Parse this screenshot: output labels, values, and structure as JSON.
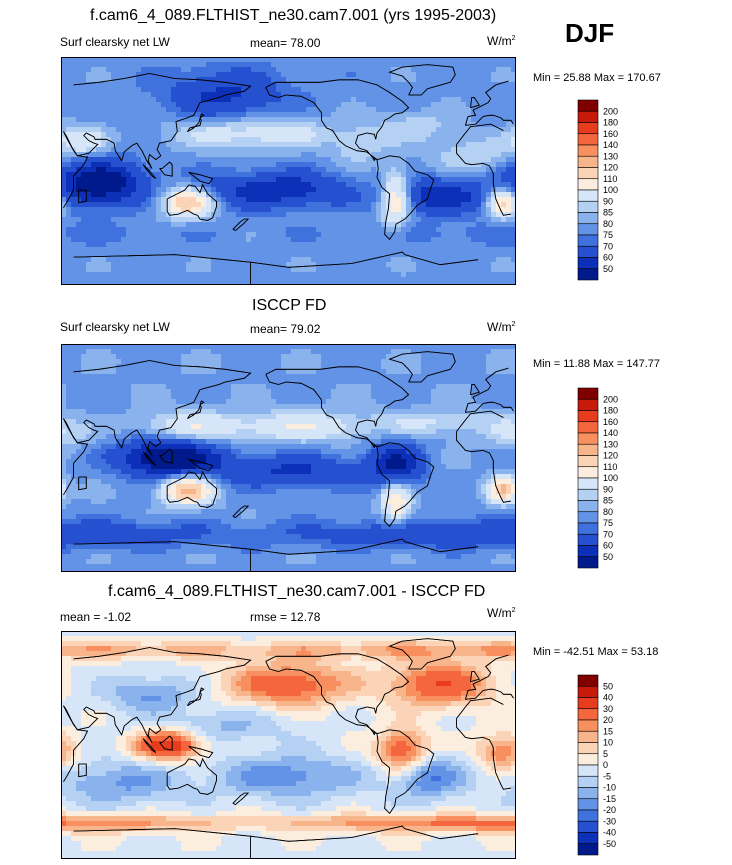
{
  "season": "DJF",
  "panels": [
    {
      "title": "f.cam6_4_089.FLTHIST_ne30.cam7.001 (yrs 1995-2003)",
      "left_label": "Surf clearsky net LW",
      "center_label": "mean=  78.00",
      "units": "W/m",
      "units_exp": "2",
      "minmax": "Min =  25.88 Max = 170.67",
      "colorbar_levels": [
        "200",
        "180",
        "160",
        "140",
        "130",
        "120",
        "110",
        "100",
        "90",
        "85",
        "80",
        "75",
        "70",
        "60",
        "50"
      ],
      "colorbar_colors": [
        "#800000",
        "#c71a0a",
        "#e83c1e",
        "#f4663e",
        "#f7905e",
        "#f8b48a",
        "#fbd3b6",
        "#fbeede",
        "#d6e6f8",
        "#b4d1f4",
        "#8ab3ed",
        "#6393e6",
        "#3f72dc",
        "#2550d0",
        "#0c30b8",
        "#001a8c"
      ]
    },
    {
      "title": "ISCCP FD",
      "left_label": "Surf clearsky net LW",
      "center_label": "mean=  79.02",
      "units": "W/m",
      "units_exp": "2",
      "minmax": "Min =  11.88 Max = 147.77",
      "colorbar_levels": [
        "200",
        "180",
        "160",
        "140",
        "130",
        "120",
        "110",
        "100",
        "90",
        "85",
        "80",
        "75",
        "70",
        "60",
        "50"
      ],
      "colorbar_colors": [
        "#800000",
        "#c71a0a",
        "#e83c1e",
        "#f4663e",
        "#f7905e",
        "#f8b48a",
        "#fbd3b6",
        "#fbeede",
        "#d6e6f8",
        "#b4d1f4",
        "#8ab3ed",
        "#6393e6",
        "#3f72dc",
        "#2550d0",
        "#0c30b8",
        "#001a8c"
      ]
    },
    {
      "title": "f.cam6_4_089.FLTHIST_ne30.cam7.001 - ISCCP FD",
      "left_label": "mean =  -1.02",
      "center_label": "rmse =  12.78",
      "units": "W/m",
      "units_exp": "2",
      "minmax": "Min = -42.51 Max =  53.18",
      "colorbar_levels": [
        "50",
        "40",
        "30",
        "20",
        "15",
        "10",
        "5",
        "0",
        "-5",
        "-10",
        "-15",
        "-20",
        "-30",
        "-40",
        "-50"
      ],
      "colorbar_colors": [
        "#800000",
        "#c71a0a",
        "#e83c1e",
        "#f4663e",
        "#f7905e",
        "#f8b48a",
        "#fbd3b6",
        "#fbeede",
        "#d6e6f8",
        "#b4d1f4",
        "#8ab3ed",
        "#6393e6",
        "#3f72dc",
        "#2550d0",
        "#0c30b8",
        "#001a8c"
      ]
    }
  ],
  "chart_data": [
    {
      "type": "heatmap",
      "title": "f.cam6_4_089.FLTHIST_ne30.cam7.001 (yrs 1995-2003)",
      "subtitle": "Surf clearsky net LW",
      "mean": 78.0,
      "min": 25.88,
      "max": 170.67,
      "units": "W/m2",
      "contour_levels": [
        50,
        60,
        70,
        75,
        80,
        85,
        90,
        100,
        110,
        120,
        130,
        140,
        160,
        180,
        200
      ],
      "fields": [
        {
          "lon": 60,
          "lat": -10,
          "sx": 24,
          "sy": 12,
          "v": -40
        },
        {
          "lon": -30,
          "lat": -20,
          "sx": 25,
          "sy": 10,
          "v": -25
        },
        {
          "lon": -160,
          "lat": -15,
          "sx": 40,
          "sy": 10,
          "v": -25
        },
        {
          "lon": 160,
          "lat": 60,
          "sx": 32,
          "sy": 14,
          "v": -20
        },
        {
          "lon": -5,
          "lat": 12,
          "sx": 22,
          "sy": 10,
          "v": 12
        },
        {
          "lon": 45,
          "lat": 24,
          "sx": 14,
          "sy": 8,
          "v": 20
        },
        {
          "lon": 150,
          "lat": 30,
          "sx": 30,
          "sy": 9,
          "v": 12
        },
        {
          "lon": -155,
          "lat": 30,
          "sx": 30,
          "sy": 9,
          "v": 14
        },
        {
          "lon": -50,
          "lat": 35,
          "sx": 24,
          "sy": 9,
          "v": 10
        },
        {
          "lon": 130,
          "lat": -25,
          "sx": 14,
          "sy": 8,
          "v": 42
        },
        {
          "lon": 20,
          "lat": -25,
          "sx": 8,
          "sy": 8,
          "v": 40
        },
        {
          "lon": -65,
          "lat": -22,
          "sx": 8,
          "sy": 16,
          "v": 32
        },
        {
          "lon": -95,
          "lat": 20,
          "sx": 14,
          "sy": 10,
          "v": 12
        },
        {
          "lon": 0,
          "lat": -50,
          "sx": 90,
          "sy": 6,
          "v": -5
        }
      ]
    },
    {
      "type": "heatmap",
      "title": "ISCCP FD",
      "subtitle": "Surf clearsky net LW",
      "mean": 79.02,
      "min": 11.88,
      "max": 147.77,
      "units": "W/m2",
      "contour_levels": [
        50,
        60,
        70,
        75,
        80,
        85,
        90,
        100,
        110,
        120,
        130,
        140,
        160,
        180,
        200
      ],
      "fields": [
        {
          "lon": 115,
          "lat": 0,
          "sx": 26,
          "sy": 10,
          "v": -45
        },
        {
          "lon": -65,
          "lat": -5,
          "sx": 14,
          "sy": 12,
          "v": -30
        },
        {
          "lon": -150,
          "lat": -10,
          "sx": 45,
          "sy": 9,
          "v": -20
        },
        {
          "lon": 0,
          "lat": -60,
          "sx": 120,
          "sy": 8,
          "v": -18
        },
        {
          "lon": 130,
          "lat": -25,
          "sx": 14,
          "sy": 8,
          "v": 45
        },
        {
          "lon": 20,
          "lat": -25,
          "sx": 8,
          "sy": 7,
          "v": 42
        },
        {
          "lon": -65,
          "lat": -35,
          "sx": 8,
          "sy": 12,
          "v": 30
        },
        {
          "lon": 30,
          "lat": 20,
          "sx": 16,
          "sy": 8,
          "v": 12
        },
        {
          "lon": 130,
          "lat": 25,
          "sx": 26,
          "sy": 8,
          "v": 18
        },
        {
          "lon": -140,
          "lat": 25,
          "sx": 40,
          "sy": 8,
          "v": 20
        },
        {
          "lon": -30,
          "lat": 28,
          "sx": 30,
          "sy": 7,
          "v": 12
        }
      ]
    },
    {
      "type": "heatmap",
      "title": "f.cam6_4_089.FLTHIST_ne30.cam7.001 - ISCCP FD",
      "mean": -1.02,
      "rmse": 12.78,
      "min": -42.51,
      "max": 53.18,
      "units": "W/m2",
      "contour_levels": [
        -50,
        -40,
        -30,
        -20,
        -15,
        -10,
        -5,
        0,
        5,
        10,
        15,
        20,
        30,
        40,
        50
      ],
      "fields": [
        {
          "lon": 115,
          "lat": 0,
          "sx": 18,
          "sy": 8,
          "v": 40
        },
        {
          "lon": -60,
          "lat": -5,
          "sx": 14,
          "sy": 12,
          "v": 30
        },
        {
          "lon": -150,
          "lat": 48,
          "sx": 34,
          "sy": 12,
          "v": 28
        },
        {
          "lon": -30,
          "lat": 48,
          "sx": 28,
          "sy": 12,
          "v": 30
        },
        {
          "lon": 0,
          "lat": -62,
          "sx": 130,
          "sy": 5,
          "v": 22
        },
        {
          "lon": 0,
          "lat": 75,
          "sx": 200,
          "sy": 5,
          "v": 15
        },
        {
          "lon": 20,
          "lat": -5,
          "sx": 14,
          "sy": 10,
          "v": 22
        },
        {
          "lon": -40,
          "lat": -25,
          "sx": 20,
          "sy": 12,
          "v": -20
        },
        {
          "lon": -150,
          "lat": -25,
          "sx": 40,
          "sy": 12,
          "v": -18
        },
        {
          "lon": 75,
          "lat": -30,
          "sx": 35,
          "sy": 12,
          "v": -15
        },
        {
          "lon": 100,
          "lat": 40,
          "sx": 25,
          "sy": 10,
          "v": -15
        },
        {
          "lon": 160,
          "lat": 15,
          "sx": 35,
          "sy": 10,
          "v": -10
        }
      ]
    }
  ]
}
